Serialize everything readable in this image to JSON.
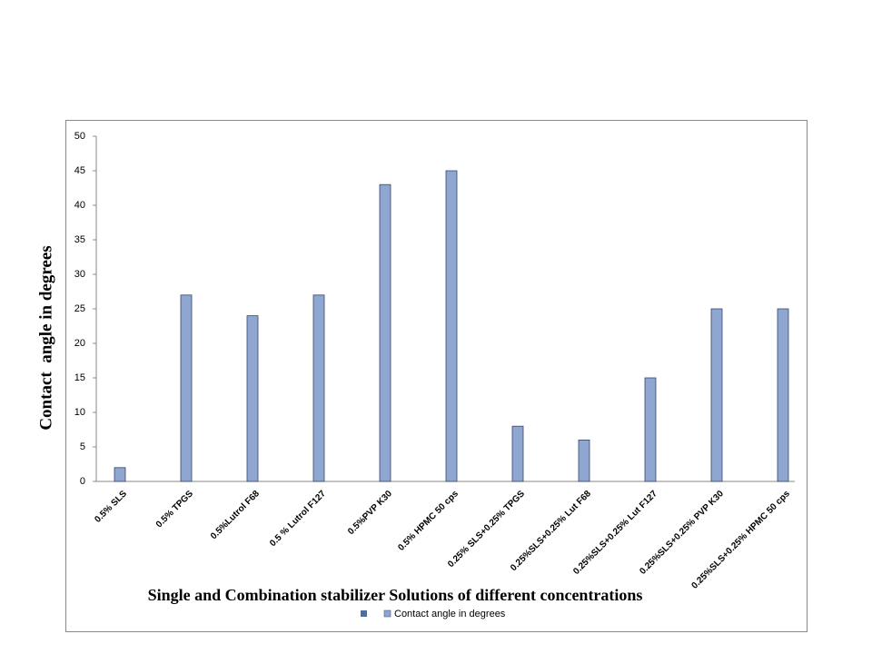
{
  "chart_data": {
    "type": "bar",
    "y_label": "Contact  angle in degrees",
    "x_label": "Single and Combination stabilizer Solutions of different concentrations",
    "categories": [
      "0.5% SLS",
      "0.5% TPGS",
      "0.5%Lutrol F68",
      "0.5 % Lutrol F127",
      "0.5%PVP K30",
      "0.5% HPMC 50 cps",
      "0.25% SLS+0.25% TPGS",
      "0.25%SLS+0.25% Lut F68",
      "0.25%SLS+0.25% Lut F127",
      "0.25%SLS+0.25% PVP K30",
      "0.25%SLS+0.25% HPMC 50 cps"
    ],
    "series": [
      {
        "name": "Contact angle in degrees",
        "color": "#8fa7d0",
        "values": [
          2,
          27,
          24,
          27,
          43,
          45,
          8,
          6,
          15,
          25,
          25
        ]
      }
    ],
    "ylim": [
      0,
      50
    ],
    "yticks": [
      0,
      5,
      10,
      15,
      20,
      25,
      30,
      35,
      40,
      45,
      50
    ],
    "legend": "bottom"
  }
}
